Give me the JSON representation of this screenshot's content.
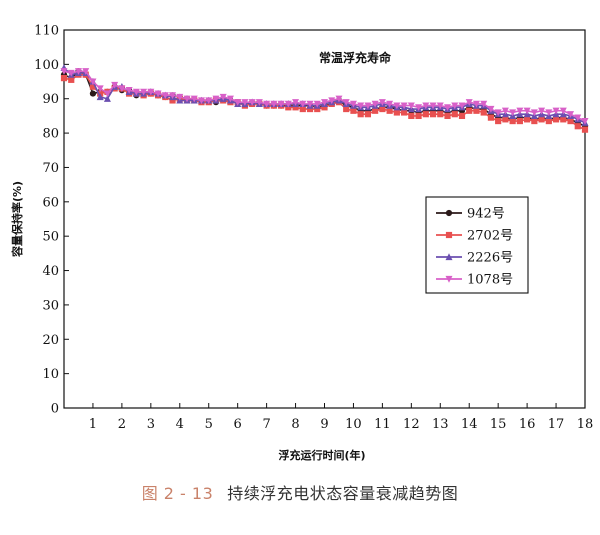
{
  "chart_data": {
    "type": "line",
    "title": "常温浮充寿命",
    "xlabel": "浮充运行时间(年)",
    "ylabel": "容量保持率(%)",
    "xlim": [
      0,
      18
    ],
    "ylim": [
      0,
      110
    ],
    "xticks": [
      1,
      2,
      3,
      4,
      5,
      6,
      7,
      8,
      9,
      10,
      11,
      12,
      13,
      14,
      15,
      16,
      17,
      18
    ],
    "yticks": [
      0,
      10,
      20,
      30,
      40,
      50,
      60,
      70,
      80,
      90,
      100,
      110
    ],
    "grid": false,
    "legend_position": "center-right",
    "x": [
      0,
      0.25,
      0.5,
      0.75,
      1,
      1.25,
      1.5,
      1.75,
      2,
      2.25,
      2.5,
      2.75,
      3,
      3.25,
      3.5,
      3.75,
      4,
      4.25,
      4.5,
      4.75,
      5,
      5.25,
      5.5,
      5.75,
      6,
      6.25,
      6.5,
      6.75,
      7,
      7.25,
      7.5,
      7.75,
      8,
      8.25,
      8.5,
      8.75,
      9,
      9.25,
      9.5,
      9.75,
      10,
      10.25,
      10.5,
      10.75,
      11,
      11.25,
      11.5,
      11.75,
      12,
      12.25,
      12.5,
      12.75,
      13,
      13.25,
      13.5,
      13.75,
      14,
      14.25,
      14.5,
      14.75,
      15,
      15.25,
      15.5,
      15.75,
      16,
      16.25,
      16.5,
      16.75,
      17,
      17.25,
      17.5,
      17.75,
      18
    ],
    "series": [
      {
        "name": "942号",
        "color": "#2b1a1a",
        "marker": "circle",
        "values": [
          97,
          96,
          98,
          97,
          91.5,
          92,
          92,
          93.5,
          92.5,
          92.5,
          91,
          91.5,
          91.5,
          91,
          90.5,
          91,
          90.5,
          90,
          89.5,
          89.5,
          89.5,
          89,
          90,
          89.5,
          89,
          88.5,
          88.5,
          88.5,
          88,
          88,
          88,
          88,
          88,
          88,
          88,
          87.5,
          88,
          88.5,
          89.5,
          88,
          87.5,
          86.5,
          86.5,
          87,
          87.5,
          87.5,
          87,
          86.5,
          86.5,
          86,
          86.5,
          86.5,
          86.5,
          86,
          86.5,
          86.5,
          87.5,
          87,
          87,
          85.5,
          84.5,
          84.5,
          84,
          84.5,
          84.5,
          84,
          84.5,
          84,
          84.5,
          84.5,
          84,
          83,
          82
        ]
      },
      {
        "name": "2702号",
        "color": "#e85050",
        "marker": "square",
        "values": [
          96,
          95.5,
          97,
          97,
          93.5,
          91.5,
          92,
          93,
          93,
          91.5,
          91.5,
          91,
          91.5,
          91,
          90.5,
          89.5,
          90,
          89.5,
          89.5,
          89,
          89,
          89.5,
          89.5,
          89,
          89,
          88,
          88.5,
          88.5,
          88,
          88,
          88,
          87.5,
          87.5,
          87,
          87,
          87,
          87.5,
          88.5,
          89,
          87,
          86.5,
          85.5,
          85.5,
          86.5,
          87,
          86.5,
          86,
          86,
          85,
          85,
          85.5,
          85.5,
          85.5,
          85,
          85.5,
          85,
          86.5,
          86.5,
          86,
          84.5,
          83.5,
          84,
          83.5,
          83.5,
          84,
          83.5,
          84,
          83.5,
          84,
          84,
          83.5,
          82,
          81
        ]
      },
      {
        "name": "2226号",
        "color": "#6b4fb0",
        "marker": "triangle",
        "values": [
          99,
          97,
          97.5,
          97.5,
          95,
          90.5,
          90,
          93.5,
          93.5,
          92,
          91.5,
          91.5,
          92,
          91.5,
          91,
          90.5,
          89.5,
          89.5,
          89.5,
          89.5,
          89.5,
          89.5,
          90,
          89.5,
          88.5,
          88.5,
          89,
          88.5,
          88.5,
          88.5,
          88.5,
          88.5,
          88.5,
          88.5,
          88,
          88,
          88.5,
          89,
          89.5,
          88.5,
          88,
          87.5,
          87.5,
          88,
          88.5,
          88,
          87.5,
          87.5,
          87,
          87,
          87.5,
          87.5,
          87.5,
          87,
          87.5,
          87.5,
          88.5,
          88,
          88,
          86.5,
          85.5,
          85.5,
          85,
          85.5,
          85.5,
          85,
          85.5,
          85,
          85.5,
          85.5,
          85,
          84,
          83
        ]
      },
      {
        "name": "1078号",
        "color": "#d860c8",
        "marker": "triangle-down",
        "values": [
          98,
          97.5,
          98,
          98,
          95,
          93,
          91.5,
          94,
          93,
          92.5,
          92,
          92,
          92,
          91.5,
          91,
          91,
          90.5,
          90,
          90,
          89.5,
          89.5,
          90,
          90.5,
          90,
          89,
          89,
          89,
          89,
          88.5,
          88.5,
          88.5,
          88.5,
          89,
          88.5,
          88.5,
          88.5,
          89,
          89.5,
          90,
          89,
          88.5,
          88,
          88,
          88.5,
          89,
          88.5,
          88,
          88,
          88,
          87.5,
          88,
          88,
          88,
          87.5,
          88,
          88,
          89,
          88.5,
          88.5,
          87,
          86,
          86.5,
          86,
          86.5,
          86.5,
          86,
          86.5,
          86,
          86.5,
          86.5,
          85.5,
          84.5,
          83.5
        ]
      }
    ]
  },
  "caption": {
    "figure_number": "图 2 - 13",
    "text": "持续浮充电状态容量衰减趋势图"
  }
}
